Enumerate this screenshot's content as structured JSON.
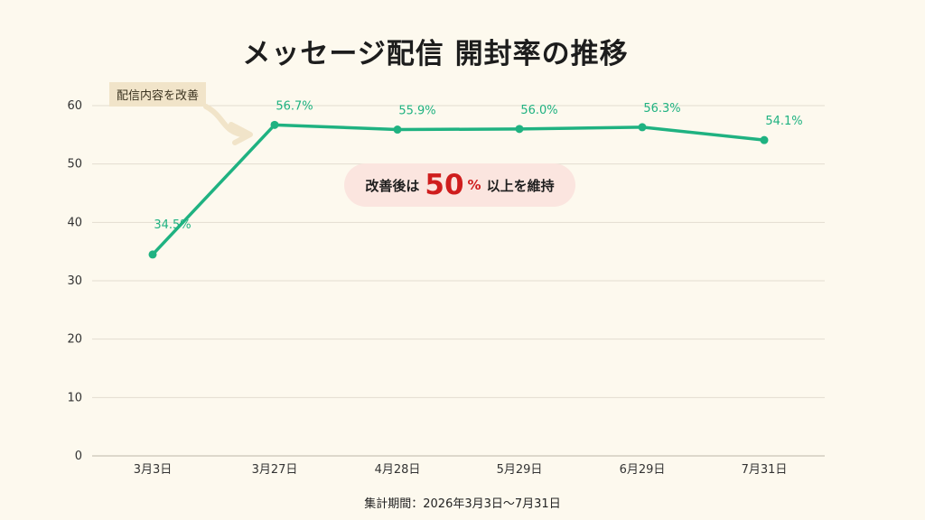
{
  "title": "メッセージ配信 開封率の推移",
  "chart_data": {
    "type": "line",
    "title": "メッセージ配信 開封率の推移",
    "categories": [
      "3月3日",
      "3月27日",
      "4月28日",
      "5月29日",
      "6月29日",
      "7月31日"
    ],
    "values": [
      34.5,
      56.7,
      55.9,
      56.0,
      56.3,
      54.1
    ],
    "data_labels": [
      "34.5%",
      "56.7%",
      "55.9%",
      "56.0%",
      "56.3%",
      "54.1%"
    ],
    "ylim": [
      0,
      60
    ],
    "yticks": [
      0,
      10,
      20,
      30,
      40,
      50,
      60
    ],
    "grid": true,
    "line_color": "#1fb281"
  },
  "annotation": {
    "label": "配信内容を改善"
  },
  "callout": {
    "prefix": "改善後は",
    "value": "50",
    "unit": "%",
    "suffix": "以上を維持"
  },
  "footer": "集計期間：2026年3月3日〜7月31日"
}
